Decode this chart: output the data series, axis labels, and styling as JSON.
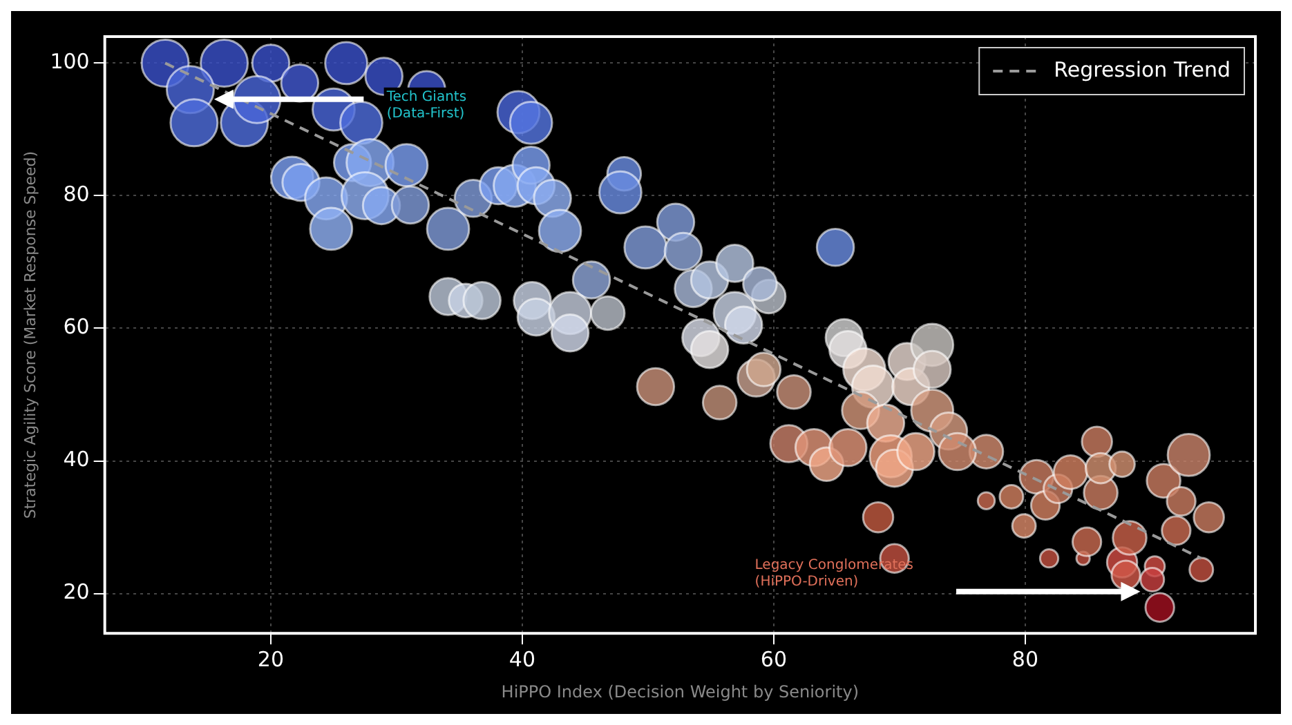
{
  "chart_data": {
    "type": "bubble",
    "xlabel": "HiPPO Index (Decision Weight by Seniority)",
    "ylabel": "Strategic Agility Score (Market Response Speed)",
    "xlim": [
      6.8,
      98.3
    ],
    "ylim": [
      14,
      104
    ],
    "xticks": [
      20,
      40,
      60,
      80
    ],
    "yticks": [
      20,
      40,
      60,
      80,
      100
    ],
    "grid": true,
    "legend": "top right",
    "annotations": [
      "Tech Giants\n(Data-First)",
      "Legacy Conglomerates\n(HiPPO-Driven)"
    ],
    "series": [
      {
        "type": "bubble",
        "x": [
          11.6,
          16.3,
          20,
          22.3,
          26,
          29,
          32.4,
          13.6,
          13.9,
          17.9,
          18.9,
          25,
          27.2,
          39.7,
          40.7,
          21.7,
          22.4,
          24.4,
          24.8,
          26.5,
          27.9,
          27.5,
          28.8,
          30.8,
          31.1,
          34.1,
          36.1,
          38.1,
          39.4,
          40.7,
          41.1,
          42.4,
          43,
          48.1,
          47.8,
          49.8,
          52.2,
          52.8,
          64.9,
          45.5,
          34.1,
          35.5,
          36.8,
          40.8,
          41.1,
          43.8,
          43.8,
          46.8,
          53.6,
          54.9,
          56.9,
          54.2,
          54.9,
          56.9,
          57.6,
          59.6,
          58.9,
          50.6,
          55.7,
          58.6,
          59.2,
          61.6,
          65.6,
          65.9,
          67.2,
          67.9,
          70.6,
          70.9,
          72.6,
          72.6,
          72.6,
          73.9,
          76.9,
          66.9,
          68.9,
          69.3,
          69.6,
          71.3,
          74.6,
          61.2,
          63.2,
          64.2,
          65.9,
          68.3,
          69.6,
          76.9,
          78.9,
          79.9,
          80.9,
          81.6,
          82.6,
          81.9,
          84.6,
          84.9,
          83.6,
          85.7,
          86,
          86,
          87.7,
          87.7,
          88,
          88.3,
          90.3,
          90.1,
          90.7,
          91,
          92.4,
          92,
          93,
          94,
          94.6
        ],
        "values": [
          100,
          100,
          100,
          97,
          100,
          98,
          96,
          96,
          91,
          91,
          94.5,
          93,
          91,
          92.6,
          91,
          82.7,
          82,
          79.6,
          75,
          85,
          85,
          80,
          78.5,
          84.6,
          78.6,
          75,
          79.6,
          81.5,
          81.5,
          84.6,
          81.5,
          79.6,
          74.7,
          83.3,
          80.5,
          72.2,
          76,
          71.6,
          72.2,
          67.3,
          64.8,
          64.2,
          64.2,
          64.2,
          61.7,
          62.3,
          59.3,
          62.3,
          66,
          67.3,
          69.8,
          58.6,
          56.8,
          62.3,
          60.5,
          64.8,
          66.7,
          51.2,
          48.8,
          52.5,
          53.8,
          50.4,
          58.6,
          56.8,
          53.8,
          51.2,
          55,
          51.2,
          57.5,
          53.8,
          47.6,
          44.5,
          41.4,
          47.6,
          45.7,
          40.7,
          38.9,
          41.4,
          41.4,
          42.6,
          42,
          39.5,
          42,
          31.5,
          25.3,
          34,
          34.6,
          30.2,
          37.6,
          33.3,
          35.8,
          25.3,
          25.3,
          27.8,
          38.3,
          42.9,
          35.2,
          38.9,
          39.5,
          24.7,
          22.8,
          28.4,
          24.1,
          22.1,
          17.9,
          37,
          33.9,
          29.5,
          40.9,
          23.6,
          31.5
        ],
        "sizes": [
          1,
          1,
          0.62,
          0.62,
          0.8,
          0.62,
          0.62,
          1,
          1,
          1,
          1,
          0.8,
          0.8,
          0.8,
          0.8,
          0.8,
          0.62,
          0.8,
          0.8,
          0.62,
          1,
          1,
          0.62,
          0.8,
          0.62,
          0.8,
          0.62,
          0.62,
          0.8,
          0.62,
          0.62,
          0.62,
          0.8,
          0.51,
          0.8,
          0.8,
          0.62,
          0.62,
          0.62,
          0.62,
          0.62,
          0.51,
          0.62,
          0.62,
          0.62,
          0.8,
          0.62,
          0.51,
          0.62,
          0.62,
          0.62,
          0.62,
          0.62,
          0.8,
          0.62,
          0.51,
          0.51,
          0.62,
          0.51,
          0.62,
          0.51,
          0.51,
          0.62,
          0.62,
          0.8,
          0.8,
          0.62,
          0.62,
          0.8,
          0.62,
          0.8,
          0.62,
          0.51,
          0.62,
          0.62,
          0.8,
          0.62,
          0.62,
          0.62,
          0.62,
          0.62,
          0.51,
          0.62,
          0.41,
          0.37,
          0.13,
          0.25,
          0.25,
          0.51,
          0.37,
          0.37,
          0.15,
          0.08,
          0.37,
          0.51,
          0.41,
          0.51,
          0.41,
          0.29,
          0.41,
          0.37,
          0.51,
          0.18,
          0.25,
          0.37,
          0.51,
          0.37,
          0.37,
          0.8,
          0.25,
          0.41
        ],
        "colors": [
          "#3a50c8",
          "#3a50c8",
          "#3a50c8",
          "#4258cf",
          "#3a50c8",
          "#3a50c8",
          "#3a50c8",
          "#4a66d8",
          "#4f6ddc",
          "#4f6ddc",
          "#4a66d8",
          "#4a66d8",
          "#4f6ddc",
          "#4a66d8",
          "#5576e0",
          "#7a9ef0",
          "#7a9ef0",
          "#86a8f2",
          "#90b0f4",
          "#7a9ef0",
          "#86a8f2",
          "#8eaef2",
          "#86a8f2",
          "#7a9ef0",
          "#7f9ad8",
          "#7f9ad8",
          "#7f9ad8",
          "#7a9ef0",
          "#86a8f2",
          "#7a9ef0",
          "#86a8f2",
          "#8eaef2",
          "#8eaef2",
          "#6a8ce0",
          "#6a8ce0",
          "#7f9ad8",
          "#7f9ad8",
          "#8ea6d8",
          "#6a8ce0",
          "#8ea6d8",
          "#bcc6d8",
          "#c8d2e4",
          "#bcc6d8",
          "#c8d2e4",
          "#c8d2e4",
          "#c4ccdc",
          "#d0d8ea",
          "#b8bec8",
          "#a8b8d8",
          "#b4c4e0",
          "#b4c4e0",
          "#d8dce8",
          "#e4e0e0",
          "#c8d2e4",
          "#d0d8ea",
          "#b8bec8",
          "#a8b8d8",
          "#c89078",
          "#c09078",
          "#c8a090",
          "#d0a890",
          "#c89078",
          "#d0d0d0",
          "#e4e0e0",
          "#f0dcd0",
          "#f0dcd0",
          "#e8d8d0",
          "#f0d8cc",
          "#c8c4c0",
          "#d8c8c0",
          "#d49a80",
          "#d49a80",
          "#d08a6e",
          "#d09478",
          "#f0b094",
          "#f0a080",
          "#f0a888",
          "#f0a888",
          "#d08a6e",
          "#c8806a",
          "#e09478",
          "#f0a888",
          "#e09478",
          "#c05a40",
          "#c05040",
          "#c86a50",
          "#d08060",
          "#d88868",
          "#c87a60",
          "#d08060",
          "#c87a60",
          "#c05040",
          "#c05040",
          "#c86a50",
          "#d08060",
          "#c87a60",
          "#c87a60",
          "#d09070",
          "#d09070",
          "#d04c44",
          "#d05848",
          "#c86048",
          "#d04c44",
          "#c84040",
          "#a01020",
          "#c87a60",
          "#c87a60",
          "#c86a50",
          "#c8826a",
          "#c05040",
          "#c87a60"
        ]
      },
      {
        "type": "line",
        "name": "Regression Trend",
        "color": "#9a9a9a",
        "line_style": "dashed",
        "marker": "none",
        "x": [
          11.6,
          94
        ],
        "values": [
          100,
          25.3
        ]
      }
    ]
  }
}
